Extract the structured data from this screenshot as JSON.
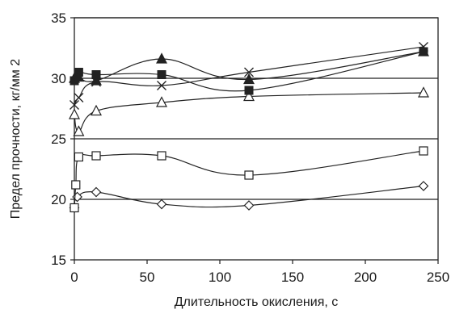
{
  "chart_data": {
    "type": "line",
    "title": "",
    "xlabel": "Длительность окисления, с",
    "ylabel": "Предел прочности, кг/мм 2",
    "xlim": [
      0,
      250
    ],
    "ylim": [
      15,
      35
    ],
    "x_ticks": [
      0,
      50,
      100,
      150,
      200,
      250
    ],
    "y_ticks": [
      15,
      20,
      25,
      30,
      35
    ],
    "x_tick_labels": [
      "0",
      "50",
      "100",
      "150",
      "200",
      "250"
    ],
    "y_tick_labels": [
      "15",
      "20",
      "25",
      "30",
      "35"
    ],
    "grid": "horizontal",
    "legend": "none",
    "series": [
      {
        "marker": "diamond-open",
        "points": [
          [
            0,
            19.3
          ],
          [
            2,
            20.2
          ],
          [
            15,
            20.6
          ],
          [
            60,
            19.6
          ],
          [
            120,
            19.5
          ],
          [
            240,
            21.1
          ]
        ]
      },
      {
        "marker": "square-open",
        "points": [
          [
            0,
            19.3
          ],
          [
            1,
            21.2
          ],
          [
            3,
            23.5
          ],
          [
            15,
            23.6
          ],
          [
            60,
            23.6
          ],
          [
            120,
            22.0
          ],
          [
            240,
            24.0
          ]
        ]
      },
      {
        "marker": "triangle-open",
        "points": [
          [
            0,
            27.0
          ],
          [
            3,
            25.6
          ],
          [
            15,
            27.3
          ],
          [
            60,
            28.0
          ],
          [
            120,
            28.5
          ],
          [
            240,
            28.8
          ]
        ]
      },
      {
        "marker": "x",
        "points": [
          [
            0,
            27.8
          ],
          [
            3,
            28.4
          ],
          [
            15,
            29.7
          ],
          [
            60,
            29.4
          ],
          [
            120,
            30.5
          ],
          [
            240,
            32.6
          ]
        ]
      },
      {
        "marker": "square-filled",
        "points": [
          [
            0,
            29.8
          ],
          [
            3,
            30.5
          ],
          [
            15,
            30.3
          ],
          [
            60,
            30.3
          ],
          [
            120,
            29.0
          ],
          [
            240,
            32.2
          ]
        ]
      },
      {
        "marker": "triangle-filled",
        "points": [
          [
            0,
            30.0
          ],
          [
            3,
            30.1
          ],
          [
            15,
            29.8
          ],
          [
            60,
            31.6
          ],
          [
            120,
            29.9
          ],
          [
            240,
            32.2
          ]
        ]
      }
    ],
    "colors": {
      "ink": "#222222",
      "background": "#ffffff"
    }
  }
}
